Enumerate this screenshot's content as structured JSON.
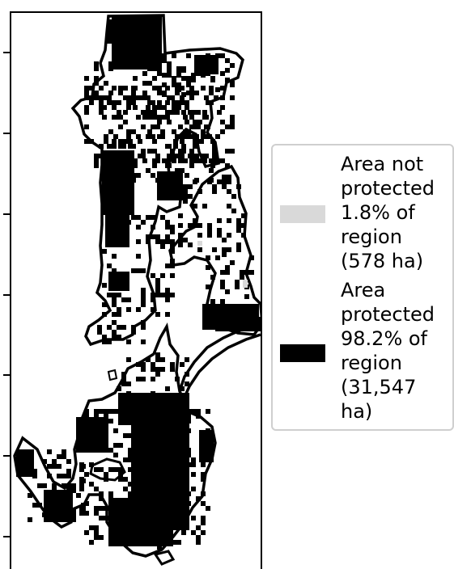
{
  "legend": {
    "not_protected": {
      "color": "#d9d9d9",
      "lines": [
        "Area not",
        "protected",
        "1.8% of",
        "region",
        "(578 ha)"
      ]
    },
    "protected": {
      "color": "#000000",
      "lines": [
        "Area",
        "protected",
        "98.2% of",
        "region",
        "(31,547",
        "ha)"
      ]
    }
  },
  "map": {
    "land_color": "#ffffff",
    "outline_color": "#000000",
    "protected_color": "#000000",
    "not_protected_color": "#d9d9d9"
  }
}
